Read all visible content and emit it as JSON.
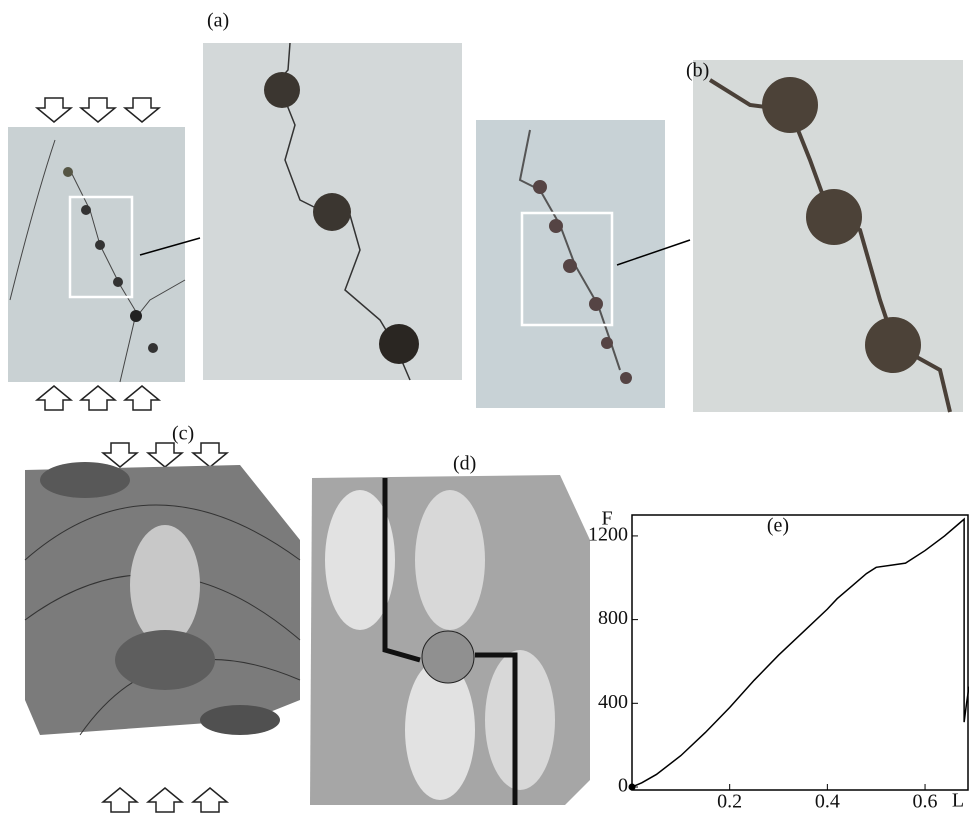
{
  "labels": [
    "(a)",
    "(b)",
    "(c)",
    "(d)"
  ],
  "chart_data": {
    "type": "line",
    "title": "(e)",
    "y_label": "F",
    "x_label": "L",
    "x": [
      0,
      0.02,
      0.05,
      0.1,
      0.15,
      0.2,
      0.25,
      0.3,
      0.35,
      0.4,
      0.42,
      0.45,
      0.48,
      0.5,
      0.53,
      0.56,
      0.6,
      0.64,
      0.67,
      0.68,
      0.68,
      0.685,
      0.69
    ],
    "series": [
      {
        "color": "#000000",
        "values": [
          0,
          20,
          60,
          150,
          260,
          380,
          510,
          630,
          740,
          850,
          900,
          960,
          1020,
          1050,
          1060,
          1070,
          1130,
          1200,
          1260,
          1280,
          310,
          400,
          480
        ]
      }
    ],
    "xlim": [
      0,
      0.69
    ],
    "ylim": [
      0,
      1300
    ],
    "xticks": [
      0.2,
      0.4,
      0.6
    ],
    "yticks": [
      0,
      400,
      800,
      1200
    ]
  }
}
